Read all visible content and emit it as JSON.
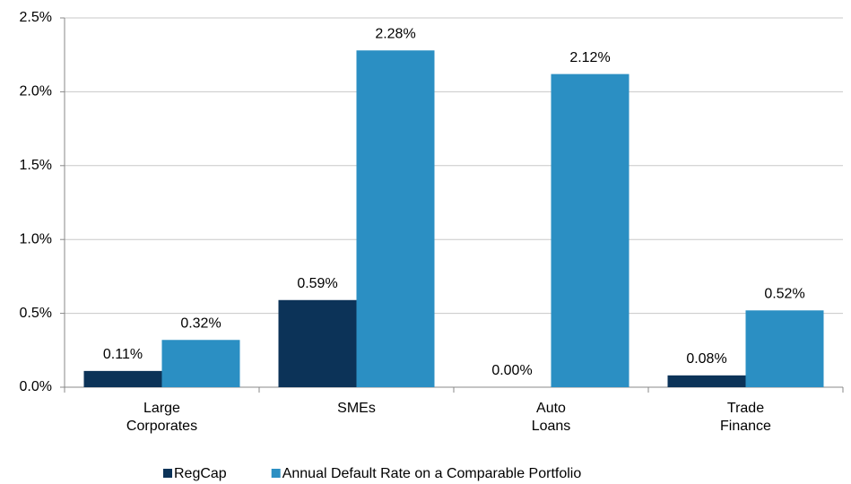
{
  "chart_data": {
    "type": "bar",
    "categories": [
      "Large Corporates",
      "SMEs",
      "Auto Loans",
      "Trade Finance"
    ],
    "series": [
      {
        "name": "RegCap",
        "color": "#0c3358",
        "values": [
          0.11,
          0.59,
          0.0,
          0.08
        ],
        "value_labels": [
          "0.11%",
          "0.59%",
          "0.00%",
          "0.08%"
        ]
      },
      {
        "name": "Annual Default Rate on a Comparable Portfolio",
        "color": "#2b8fc3",
        "values": [
          0.32,
          2.28,
          2.12,
          0.52
        ],
        "value_labels": [
          "0.32%",
          "2.28%",
          "2.12%",
          "0.52%"
        ]
      }
    ],
    "ylim": [
      0,
      2.5
    ],
    "yticks": [
      {
        "value": 0,
        "label": "0.0%"
      },
      {
        "value": 0.5,
        "label": "0.5%"
      },
      {
        "value": 1.0,
        "label": "1.0%"
      },
      {
        "value": 1.5,
        "label": "1.5%"
      },
      {
        "value": 2.0,
        "label": "2.0%"
      },
      {
        "value": 2.5,
        "label": "2.5%"
      }
    ],
    "grid": true,
    "legend": "bottom"
  }
}
